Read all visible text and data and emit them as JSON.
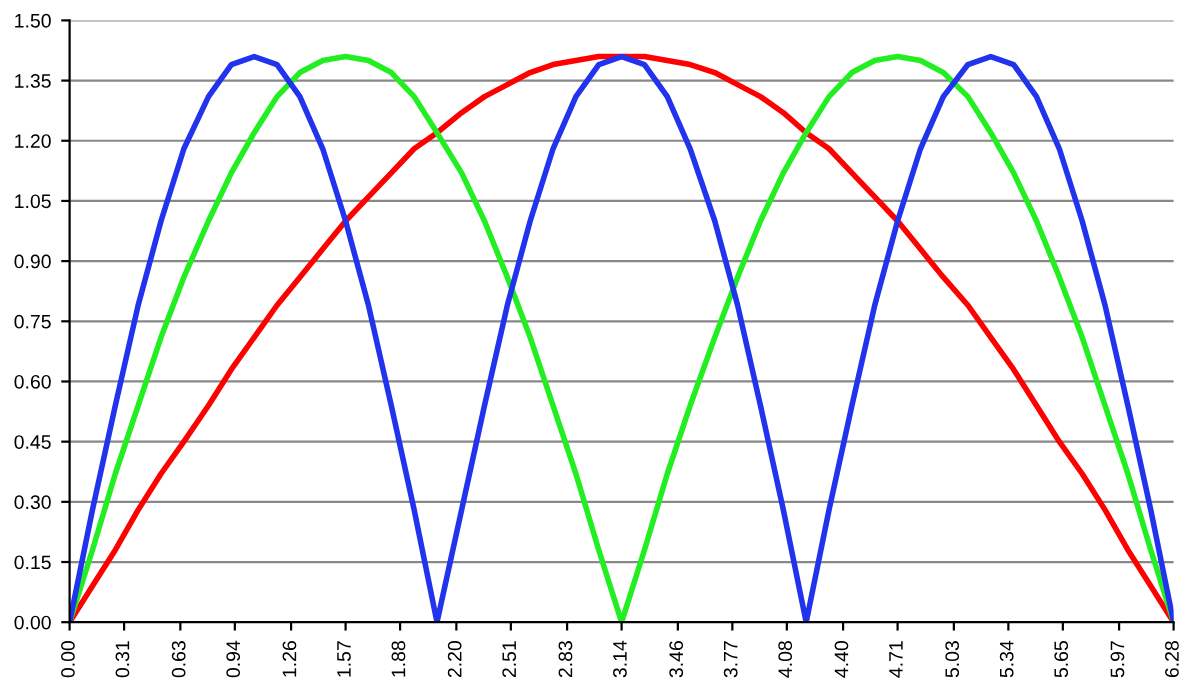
{
  "chart_data": {
    "type": "line",
    "x": [
      0,
      0.13,
      0.26,
      0.39,
      0.52,
      0.65,
      0.79,
      0.92,
      1.05,
      1.18,
      1.31,
      1.44,
      1.57,
      1.7,
      1.83,
      1.96,
      2.09,
      2.23,
      2.36,
      2.49,
      2.62,
      2.75,
      2.88,
      3.01,
      3.14,
      3.27,
      3.4,
      3.53,
      3.67,
      3.8,
      3.93,
      4.06,
      4.19,
      4.32,
      4.45,
      4.58,
      4.71,
      4.84,
      4.97,
      5.11,
      5.24,
      5.37,
      5.5,
      5.63,
      5.76,
      5.89,
      6.02,
      6.15,
      6.28
    ],
    "series": [
      {
        "color": "#ff0000",
        "values": [
          0,
          0.09,
          0.18,
          0.28,
          0.37,
          0.45,
          0.54,
          0.63,
          0.71,
          0.79,
          0.86,
          0.93,
          1.0,
          1.06,
          1.12,
          1.18,
          1.22,
          1.27,
          1.31,
          1.34,
          1.37,
          1.39,
          1.4,
          1.41,
          1.41,
          1.41,
          1.4,
          1.39,
          1.37,
          1.34,
          1.31,
          1.27,
          1.22,
          1.18,
          1.12,
          1.06,
          1.0,
          0.93,
          0.86,
          0.79,
          0.71,
          0.63,
          0.54,
          0.45,
          0.37,
          0.28,
          0.18,
          0.09,
          0
        ]
      },
      {
        "color": "#22ee22",
        "values": [
          0,
          0.18,
          0.37,
          0.54,
          0.71,
          0.86,
          1.0,
          1.12,
          1.22,
          1.31,
          1.37,
          1.4,
          1.41,
          1.4,
          1.37,
          1.31,
          1.22,
          1.12,
          1.0,
          0.86,
          0.71,
          0.54,
          0.37,
          0.18,
          0,
          0.18,
          0.37,
          0.54,
          0.71,
          0.86,
          1.0,
          1.12,
          1.22,
          1.31,
          1.37,
          1.4,
          1.41,
          1.4,
          1.37,
          1.31,
          1.22,
          1.12,
          1.0,
          0.86,
          0.71,
          0.54,
          0.37,
          0.18,
          0
        ]
      },
      {
        "color": "#2233ee",
        "values": [
          0,
          0.28,
          0.54,
          0.79,
          1.0,
          1.18,
          1.31,
          1.39,
          1.41,
          1.39,
          1.31,
          1.18,
          1.0,
          0.79,
          0.54,
          0.28,
          0,
          0.28,
          0.54,
          0.79,
          1.0,
          1.18,
          1.31,
          1.39,
          1.41,
          1.39,
          1.31,
          1.18,
          1.0,
          0.79,
          0.54,
          0.28,
          0,
          0.28,
          0.54,
          0.79,
          1.0,
          1.18,
          1.31,
          1.39,
          1.41,
          1.39,
          1.31,
          1.18,
          1.0,
          0.79,
          0.54,
          0.28,
          0
        ]
      }
    ],
    "xlim": [
      0,
      6.28
    ],
    "xticks": [
      {
        "value": 0,
        "label": "0.00"
      },
      {
        "value": 0.31,
        "label": "0.31"
      },
      {
        "value": 0.63,
        "label": "0.63"
      },
      {
        "value": 0.94,
        "label": "0.94"
      },
      {
        "value": 1.26,
        "label": "1.26"
      },
      {
        "value": 1.57,
        "label": "1.57"
      },
      {
        "value": 1.88,
        "label": "1.88"
      },
      {
        "value": 2.2,
        "label": "2.20"
      },
      {
        "value": 2.51,
        "label": "2.51"
      },
      {
        "value": 2.83,
        "label": "2.83"
      },
      {
        "value": 3.14,
        "label": "3.14"
      },
      {
        "value": 3.46,
        "label": "3.46"
      },
      {
        "value": 3.77,
        "label": "3.77"
      },
      {
        "value": 4.08,
        "label": "4.08"
      },
      {
        "value": 4.4,
        "label": "4.40"
      },
      {
        "value": 4.71,
        "label": "4.71"
      },
      {
        "value": 5.03,
        "label": "5.03"
      },
      {
        "value": 5.34,
        "label": "5.34"
      },
      {
        "value": 5.65,
        "label": "5.65"
      },
      {
        "value": 5.97,
        "label": "5.97"
      },
      {
        "value": 6.28,
        "label": "6.28"
      }
    ],
    "ylim": [
      0,
      1.5
    ],
    "yticks": [
      {
        "value": 0,
        "label": "0.00"
      },
      {
        "value": 0.15,
        "label": "0.15"
      },
      {
        "value": 0.3,
        "label": "0.30"
      },
      {
        "value": 0.45,
        "label": "0.45"
      },
      {
        "value": 0.6,
        "label": "0.60"
      },
      {
        "value": 0.75,
        "label": "0.75"
      },
      {
        "value": 0.9,
        "label": "0.90"
      },
      {
        "value": 1.05,
        "label": "1.05"
      },
      {
        "value": 1.2,
        "label": "1.20"
      },
      {
        "value": 1.35,
        "label": "1.35"
      },
      {
        "value": 1.5,
        "label": "1.50"
      }
    ],
    "grid": "y",
    "line_style": "solid",
    "marker": "none"
  }
}
